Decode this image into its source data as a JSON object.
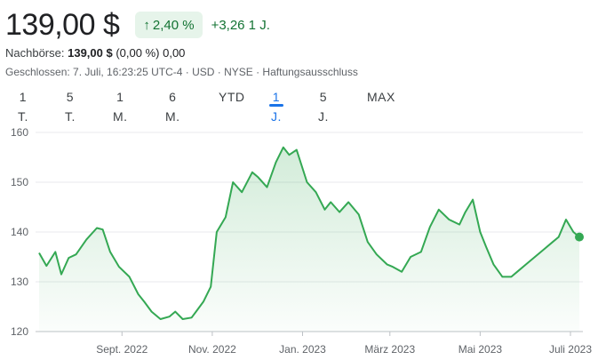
{
  "header": {
    "price": "139,00 $",
    "change_pct": "2,40 %",
    "change_abs": "+3,26 1 J.",
    "after_label": "Nachbörse:",
    "after_price": "139,00 $",
    "after_change": "(0,00 %)",
    "after_abs": "0,00",
    "closed_line": "Geschlossen: 7. Juli, 16:23:25 UTC-4 · USD · NYSE · Haftungsausschluss",
    "up_color": "#137333",
    "up_bg": "#e6f4ea"
  },
  "tabs": [
    {
      "label": "1 T."
    },
    {
      "label": "5 T."
    },
    {
      "label": "1 M."
    },
    {
      "label": "6 M."
    },
    {
      "label": "YTD"
    },
    {
      "label": "1 J.",
      "active": true
    },
    {
      "label": "5 J."
    },
    {
      "label": "MAX"
    }
  ],
  "chart_data": {
    "type": "area",
    "ylim": [
      120,
      160
    ],
    "yticks": [
      160,
      150,
      140,
      130,
      120
    ],
    "xticks": [
      "Sept. 2022",
      "Nov. 2022",
      "Jan. 2023",
      "März 2023",
      "Mai 2023",
      "Juli 2023"
    ],
    "line_color": "#34a853",
    "grid": true,
    "series": [
      {
        "x": [
          "2022-07-07",
          "2022-07-12",
          "2022-07-18",
          "2022-07-22",
          "2022-07-27",
          "2022-08-01",
          "2022-08-08",
          "2022-08-15",
          "2022-08-19",
          "2022-08-24",
          "2022-08-30",
          "2022-09-06",
          "2022-09-12",
          "2022-09-16",
          "2022-09-21",
          "2022-09-27",
          "2022-10-03",
          "2022-10-07",
          "2022-10-12",
          "2022-10-18",
          "2022-10-21",
          "2022-10-26",
          "2022-10-31",
          "2022-11-04",
          "2022-11-10",
          "2022-11-15",
          "2022-11-21",
          "2022-11-28",
          "2022-12-02",
          "2022-12-08",
          "2022-12-14",
          "2022-12-19",
          "2022-12-23",
          "2022-12-28",
          "2023-01-04",
          "2023-01-10",
          "2023-01-16",
          "2023-01-20",
          "2023-01-26",
          "2023-02-01",
          "2023-02-08",
          "2023-02-14",
          "2023-02-20",
          "2023-02-27",
          "2023-03-03",
          "2023-03-09",
          "2023-03-15",
          "2023-03-22",
          "2023-03-28",
          "2023-04-03",
          "2023-04-10",
          "2023-04-17",
          "2023-04-21",
          "2023-04-26",
          "2023-05-01",
          "2023-05-05",
          "2023-05-10",
          "2023-05-16",
          "2023-05-22",
          "2023-05-26",
          "2023-06-01",
          "2023-06-07",
          "2023-06-13",
          "2023-06-19",
          "2023-06-23",
          "2023-06-28",
          "2023-07-03",
          "2023-07-07"
        ],
        "values": [
          135.8,
          133.2,
          136.0,
          131.5,
          134.8,
          135.5,
          138.5,
          140.8,
          140.5,
          136.0,
          133.0,
          131.0,
          127.5,
          126.0,
          124.0,
          122.5,
          123.0,
          124.0,
          122.5,
          122.8,
          124.0,
          126.0,
          129.0,
          140.0,
          143.0,
          150.0,
          148.0,
          152.0,
          151.0,
          149.0,
          154.0,
          157.0,
          155.5,
          156.5,
          150.0,
          148.0,
          144.5,
          146.0,
          144.0,
          146.0,
          143.5,
          138.0,
          135.5,
          133.5,
          133.0,
          132.0,
          135.0,
          136.0,
          141.0,
          144.5,
          142.5,
          141.5,
          144.0,
          146.5,
          140.0,
          137.0,
          133.5,
          131.0,
          131.0,
          132.0,
          133.5,
          135.0,
          136.5,
          138.0,
          139.0,
          142.5,
          140.0,
          139.0
        ]
      }
    ]
  }
}
